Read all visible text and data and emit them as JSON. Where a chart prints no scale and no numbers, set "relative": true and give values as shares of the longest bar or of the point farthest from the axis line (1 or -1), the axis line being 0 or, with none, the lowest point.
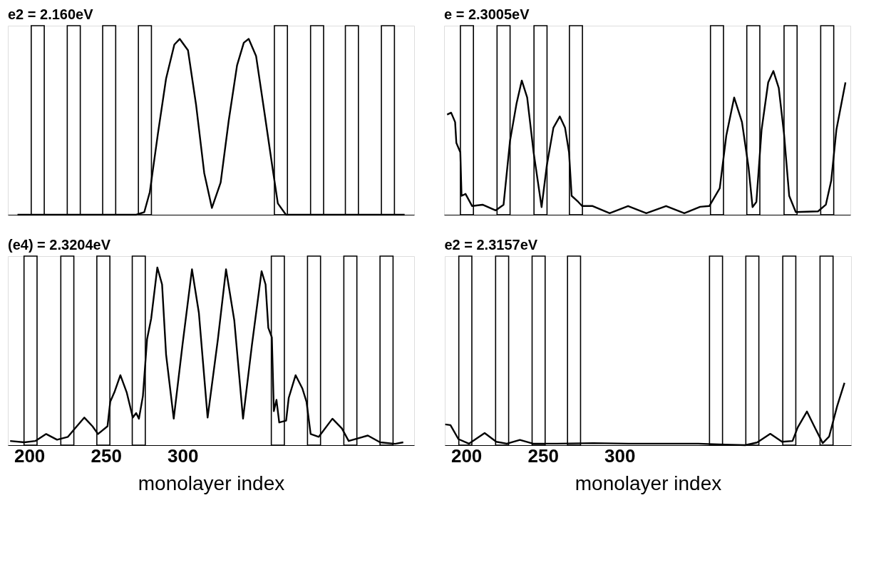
{
  "chart_data": [
    {
      "type": "line",
      "title": "e2 = 2.160eV",
      "relative": true,
      "xlim": [
        186,
        451
      ],
      "tick_labels": false,
      "series": [
        {
          "type": "bar",
          "color": "#000000",
          "x": [
            205.5,
            229,
            252.1,
            275.4,
            364.1,
            387.7,
            410.4,
            433.9
          ],
          "values": [
            1,
            1,
            1,
            1,
            1,
            1,
            1,
            1
          ]
        },
        {
          "color": "#000000",
          "x": [
            192.3,
            269.7,
            275,
            278.6,
            283.9,
            289.2,
            294.6,
            298.1,
            303.5,
            308.8,
            314.1,
            319.1,
            324.8,
            330.1,
            335.5,
            339.9,
            343.1,
            347.9,
            353.2,
            358.6,
            362.1,
            367.4,
            444.8
          ],
          "values": [
            0,
            0,
            0.014,
            0.12,
            0.43,
            0.72,
            0.9,
            0.93,
            0.87,
            0.58,
            0.22,
            0.036,
            0.17,
            0.5,
            0.79,
            0.91,
            0.93,
            0.84,
            0.55,
            0.25,
            0.06,
            0,
            0
          ]
        }
      ]
    },
    {
      "type": "line",
      "title": "e = 2.3005eV",
      "relative": true,
      "xlim": [
        186,
        451
      ],
      "tick_labels": false,
      "series": [
        {
          "type": "bar",
          "color": "#000000",
          "x": [
            200.9,
            224.8,
            248.9,
            272,
            364,
            387.7,
            412,
            435.9
          ],
          "values": [
            1,
            1,
            1,
            1,
            1,
            1,
            1,
            1
          ]
        },
        {
          "color": "#000000",
          "x": [
            188,
            190.6,
            193.2,
            194,
            196.6,
            197.4,
            200,
            204.3,
            211.1,
            219.6,
            224.8,
            229,
            233.3,
            236.7,
            240.2,
            244.4,
            249.6,
            253,
            257.3,
            261.5,
            264.9,
            267.5,
            269.2,
            273.5,
            276.1,
            282.9,
            294,
            306,
            317.9,
            330.8,
            342.7,
            353,
            359,
            365.8,
            370.1,
            375.2,
            380.3,
            384.6,
            387.2,
            389.7,
            393.1,
            397.4,
            400.8,
            404.3,
            407.7,
            411.1,
            415.4,
            429.9,
            435,
            438.5,
            441.9,
            447.8
          ],
          "values": [
            0.53,
            0.54,
            0.49,
            0.38,
            0.33,
            0.1,
            0.11,
            0.046,
            0.053,
            0.023,
            0.053,
            0.39,
            0.59,
            0.71,
            0.62,
            0.33,
            0.04,
            0.26,
            0.46,
            0.52,
            0.46,
            0.33,
            0.1,
            0.068,
            0.046,
            0.046,
            0.008,
            0.046,
            0.008,
            0.046,
            0.008,
            0.042,
            0.046,
            0.14,
            0.42,
            0.62,
            0.49,
            0.25,
            0.04,
            0.068,
            0.45,
            0.7,
            0.76,
            0.67,
            0.43,
            0.1,
            0.014,
            0.018,
            0.053,
            0.18,
            0.45,
            0.7
          ]
        }
      ]
    },
    {
      "type": "line",
      "title": "(e4) = 2.3204eV",
      "relative": true,
      "xlim": [
        186,
        451
      ],
      "xticks": [
        200,
        250,
        300
      ],
      "xlabel": "monolayer index",
      "tick_labels": "x",
      "series": [
        {
          "type": "bar",
          "color": "#000000",
          "x": [
            200.8,
            224.8,
            248.3,
            271.4,
            362.1,
            385.7,
            409.4,
            433
          ],
          "values": [
            1,
            1,
            1,
            1,
            1,
            1,
            1,
            1
          ]
        },
        {
          "color": "#000000",
          "x": [
            187.5,
            196.8,
            203.9,
            211,
            218.1,
            225.2,
            229.7,
            235.9,
            241.2,
            244.8,
            251,
            252.8,
            255.5,
            259.4,
            263.5,
            267.5,
            269.7,
            271.5,
            274.1,
            276.8,
            279.5,
            283.5,
            286.6,
            289.2,
            294.2,
            299.9,
            306.1,
            310.6,
            316.3,
            323,
            328.3,
            333.7,
            339.4,
            345.2,
            351.5,
            354.1,
            355.9,
            358.2,
            359.5,
            361.2,
            363,
            367.5,
            369.2,
            373.7,
            378.1,
            380.8,
            383.5,
            388.8,
            397.7,
            403.9,
            408.3,
            420.8,
            428.8,
            438.6,
            443.9
          ],
          "values": [
            0.022,
            0.015,
            0.022,
            0.059,
            0.029,
            0.044,
            0.088,
            0.146,
            0.1,
            0.059,
            0.1,
            0.23,
            0.28,
            0.37,
            0.28,
            0.146,
            0.17,
            0.14,
            0.26,
            0.56,
            0.67,
            0.94,
            0.85,
            0.48,
            0.14,
            0.53,
            0.93,
            0.7,
            0.146,
            0.56,
            0.93,
            0.66,
            0.14,
            0.53,
            0.92,
            0.85,
            0.62,
            0.57,
            0.18,
            0.24,
            0.12,
            0.13,
            0.25,
            0.37,
            0.3,
            0.23,
            0.059,
            0.044,
            0.14,
            0.088,
            0.022,
            0.051,
            0.015,
            0.007,
            0.015
          ]
        }
      ]
    },
    {
      "type": "line",
      "title": "e2 = 2.3157eV",
      "relative": true,
      "xlim": [
        186,
        451
      ],
      "xticks": [
        200,
        250,
        300
      ],
      "xlabel": "monolayer index",
      "tick_labels": "x",
      "series": [
        {
          "type": "bar",
          "color": "#000000",
          "x": [
            199.4,
            223.4,
            247.2,
            270.3,
            362.9,
            386.6,
            410.7,
            435
          ],
          "values": [
            1,
            1,
            1,
            1,
            1,
            1,
            1,
            1
          ]
        },
        {
          "color": "#000000",
          "x": [
            186.3,
            189.7,
            194.9,
            201.7,
            212,
            219.6,
            226.5,
            235,
            243.6,
            259,
            282.9,
            306,
            329.1,
            351.3,
            365,
            382,
            389.7,
            398.3,
            406,
            412.8,
            416.2,
            422.2,
            427.3,
            432.5,
            436.7,
            441.9,
            446.7
          ],
          "values": [
            0.11,
            0.106,
            0.032,
            0.008,
            0.064,
            0.018,
            0.008,
            0.028,
            0.008,
            0.008,
            0.011,
            0.008,
            0.008,
            0.008,
            0.004,
            0,
            0.014,
            0.06,
            0.018,
            0.022,
            0.094,
            0.178,
            0.094,
            0.011,
            0.046,
            0.206,
            0.33
          ]
        }
      ]
    }
  ]
}
